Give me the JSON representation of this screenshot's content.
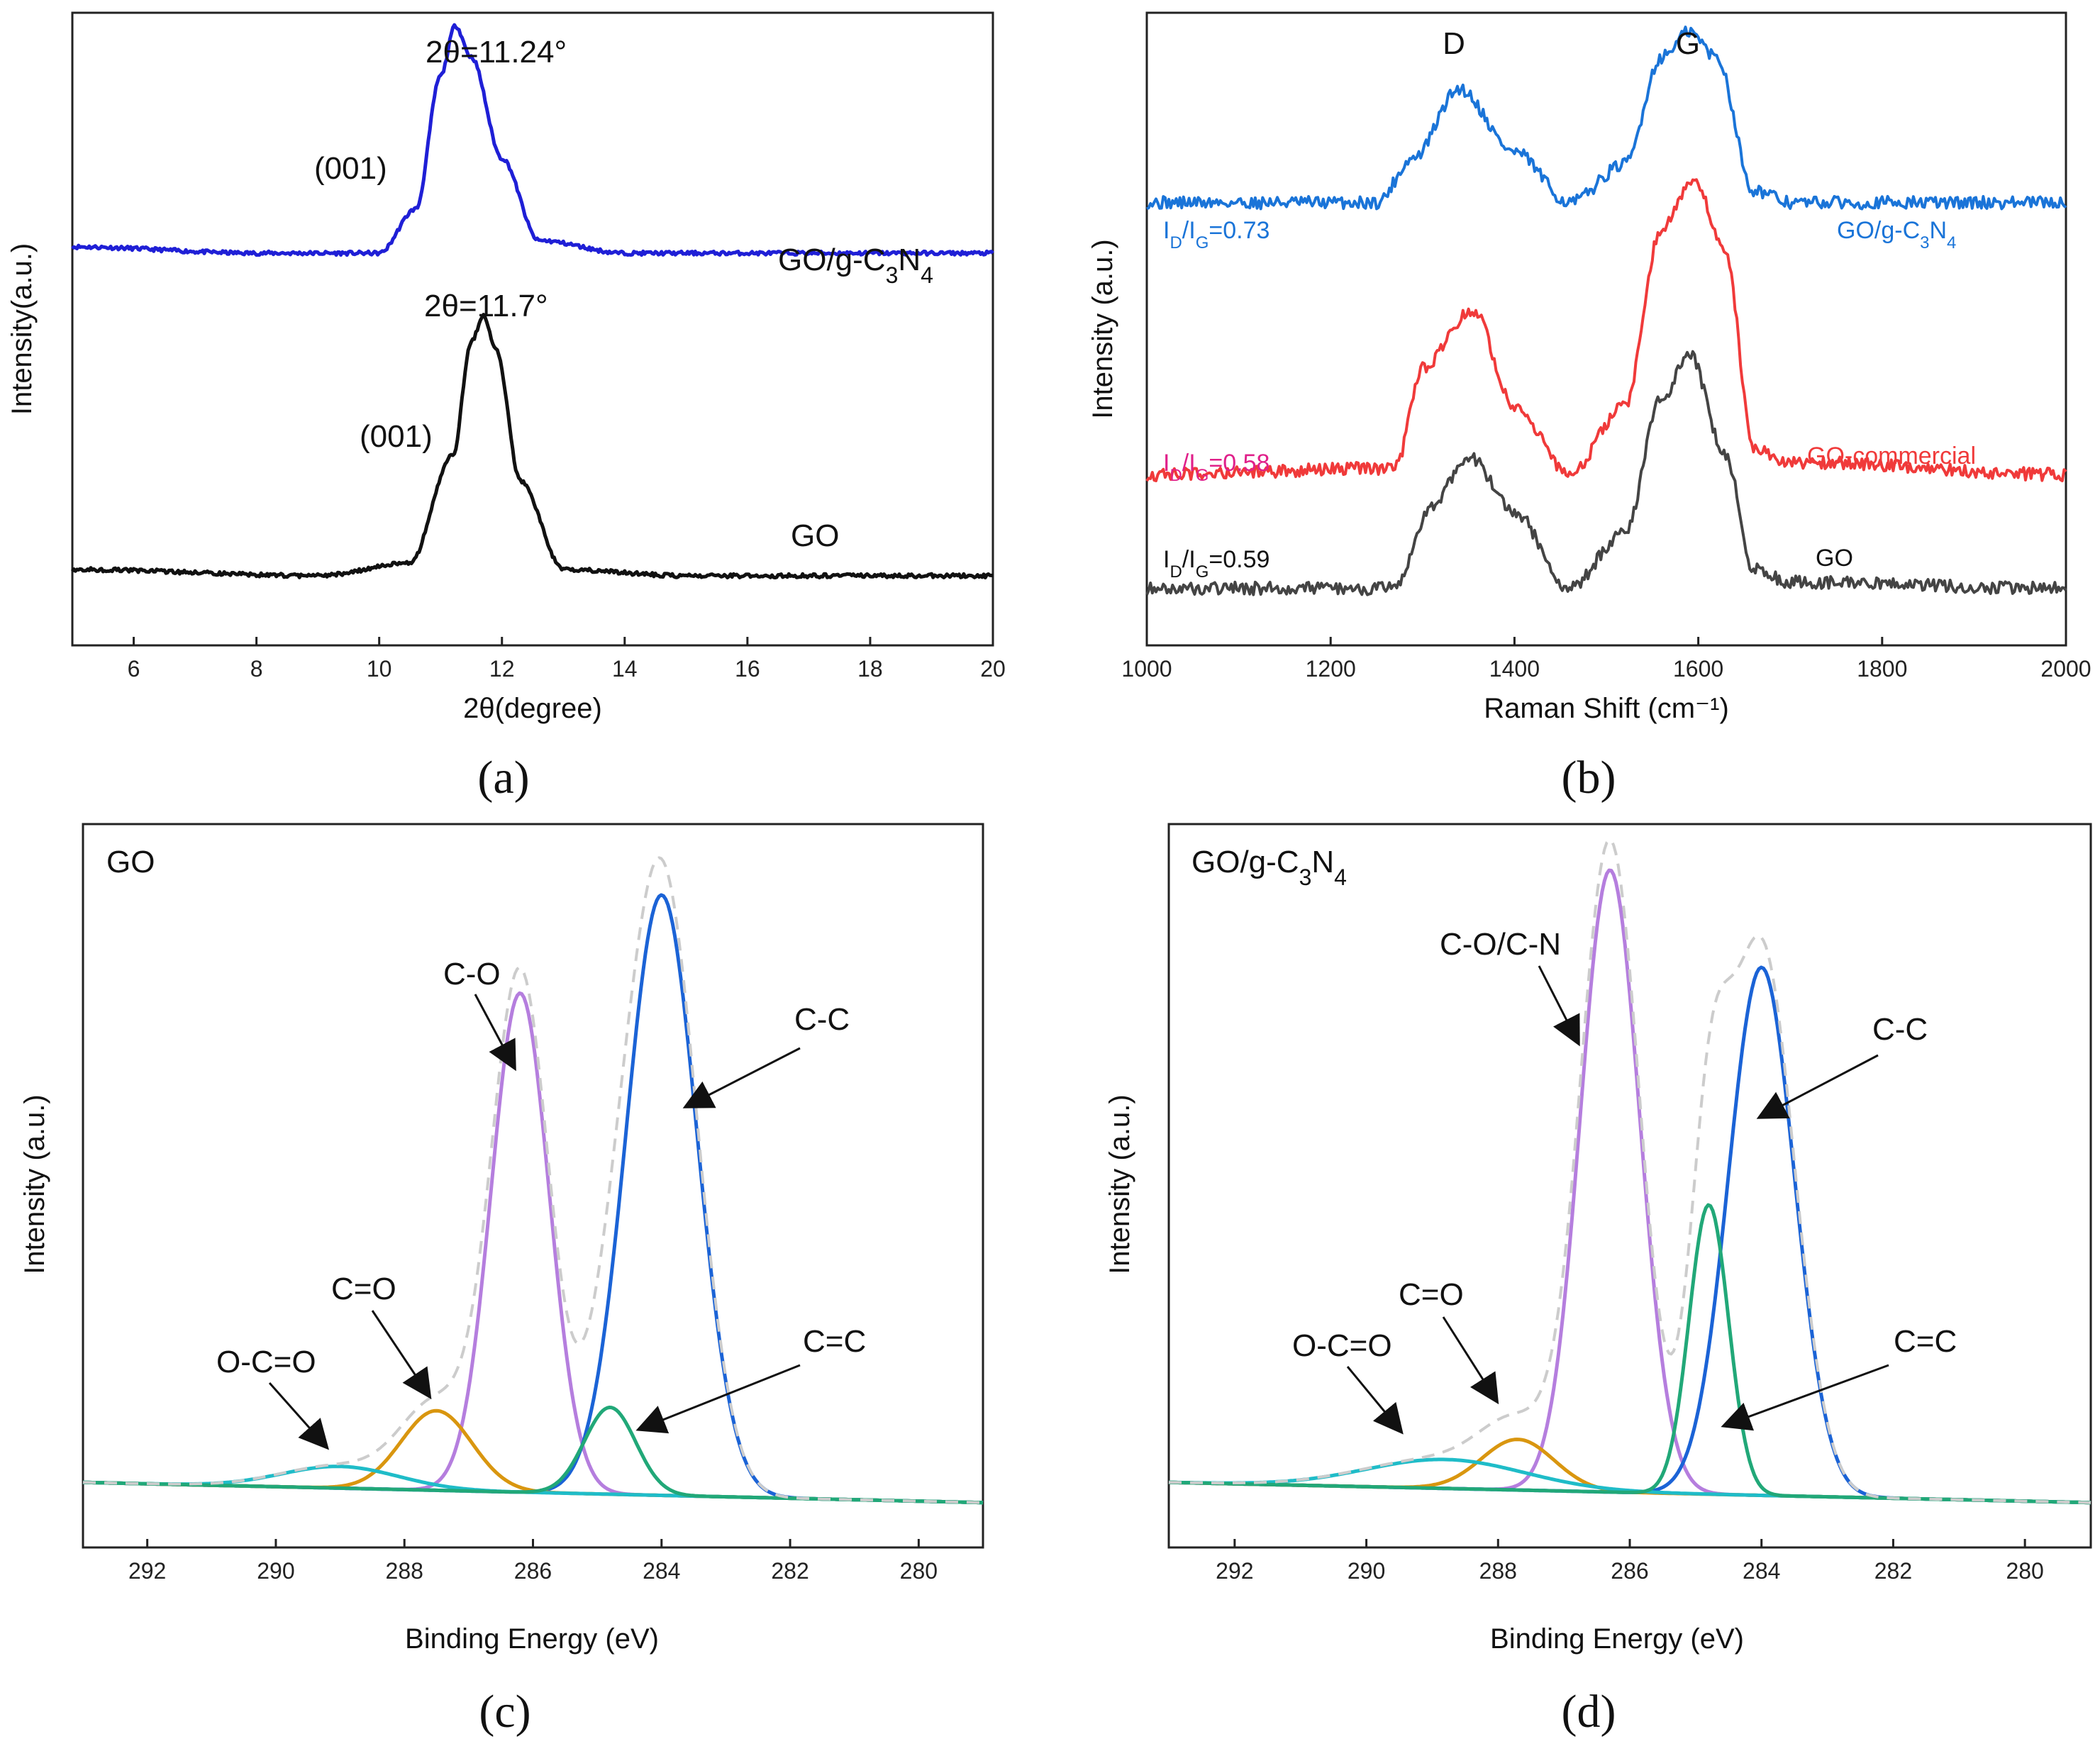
{
  "panels": {
    "a": {
      "label": "(a)",
      "xlabel": "2θ(degree)",
      "ylabel": "Intensity(a.u.)",
      "ann_peak_top": "2θ=11.24°",
      "ann_plane_top": "(001)",
      "ann_peak_bottom": "2θ=11.7°",
      "ann_plane_bottom": "(001)",
      "series_top_name": "GO/g-C3N4",
      "series_bottom_name": "GO"
    },
    "b": {
      "label": "(b)",
      "xlabel": "Raman Shift (cm⁻¹)",
      "ylabel": "Intensity (a.u.)",
      "band_d": "D",
      "band_g": "G",
      "ratio_top": "ID/IG=0.73",
      "ratio_mid": "ID/IG=0.58",
      "ratio_bottom": "ID/IG=0.59",
      "series_top_name": "GO/g-C3N4",
      "series_mid_name": "GO-commercial",
      "series_bottom_name": "GO"
    },
    "c": {
      "label": "(c)",
      "xlabel": "Binding Energy (eV)",
      "ylabel": "Intensity (a.u.)",
      "sample": "GO",
      "peaks": {
        "co": "C-O",
        "cc": "C-C",
        "c_dbl_o": "C=O",
        "occo": "O-C=O",
        "c_dbl_c": "C=C"
      }
    },
    "d": {
      "label": "(d)",
      "xlabel": "Binding Energy (eV)",
      "ylabel": "Intensity (a.u.)",
      "sample": "GO/g-C3N4",
      "peaks": {
        "con": "C-O/C-N",
        "cc": "C-C",
        "c_dbl_o": "C=O",
        "occo": "O-C=O",
        "c_dbl_c": "C=C"
      }
    }
  },
  "colors": {
    "xrd_top": "#1f1fd6",
    "xrd_bottom": "#111111",
    "raman_top": "#1a74d8",
    "raman_mid": "#f03a3a",
    "raman_bottom": "#444444",
    "ratio_mid_text": "#e0208a",
    "c_o": "#b57ede",
    "c_c": "#1b63d6",
    "c_dbl_o": "#d9960f",
    "o_c_o": "#1fbcc8",
    "c_dbl_c": "#21a878",
    "envelope": "#cccccc"
  },
  "chart_data": [
    {
      "type": "line",
      "panel": "a",
      "title": "",
      "xlabel": "2θ(degree)",
      "ylabel": "Intensity(a.u.)",
      "xlim": [
        5,
        20
      ],
      "xticks": [
        6,
        8,
        10,
        12,
        14,
        16,
        18,
        20
      ],
      "y_ticks_shown": false,
      "series": [
        {
          "name": "GO/g-C3N4",
          "x": [
            5,
            8,
            10,
            10.6,
            11.0,
            11.24,
            11.5,
            12.0,
            12.6,
            14,
            20
          ],
          "y": [
            0.63,
            0.62,
            0.62,
            0.69,
            0.9,
            0.98,
            0.93,
            0.77,
            0.64,
            0.62,
            0.62
          ]
        },
        {
          "name": "GO",
          "x": [
            5,
            9,
            10.5,
            11.2,
            11.5,
            11.7,
            11.9,
            12.3,
            13.0,
            15,
            20
          ],
          "y": [
            0.12,
            0.11,
            0.13,
            0.3,
            0.48,
            0.52,
            0.47,
            0.26,
            0.12,
            0.11,
            0.11
          ]
        }
      ]
    },
    {
      "type": "line",
      "panel": "b",
      "title": "",
      "xlabel": "Raman Shift (cm⁻¹)",
      "ylabel": "Intensity (a.u.)",
      "xlim": [
        1000,
        2000
      ],
      "xticks": [
        1000,
        1200,
        1400,
        1600,
        1800,
        2000
      ],
      "y_ticks_shown": false,
      "series": [
        {
          "name": "GO/g-C3N4",
          "x": [
            1000,
            1250,
            1290,
            1340,
            1400,
            1460,
            1520,
            1560,
            1590,
            1620,
            1660,
            1700,
            2000
          ],
          "y": [
            0.7,
            0.7,
            0.77,
            0.88,
            0.78,
            0.7,
            0.76,
            0.93,
            0.97,
            0.93,
            0.72,
            0.7,
            0.7
          ]
        },
        {
          "name": "GO-commercial",
          "x": [
            1000,
            1270,
            1300,
            1355,
            1400,
            1460,
            1520,
            1560,
            1595,
            1630,
            1660,
            1700,
            2000
          ],
          "y": [
            0.27,
            0.28,
            0.44,
            0.53,
            0.38,
            0.27,
            0.38,
            0.66,
            0.74,
            0.62,
            0.31,
            0.29,
            0.27
          ]
        },
        {
          "name": "GO",
          "x": [
            1000,
            1270,
            1310,
            1350,
            1400,
            1460,
            1520,
            1560,
            1590,
            1630,
            1660,
            1700,
            2000
          ],
          "y": [
            0.09,
            0.09,
            0.22,
            0.3,
            0.21,
            0.09,
            0.18,
            0.39,
            0.46,
            0.3,
            0.12,
            0.1,
            0.09
          ]
        }
      ]
    },
    {
      "type": "line",
      "panel": "c",
      "title": "",
      "xlabel": "Binding Energy (eV)",
      "ylabel": "Intensity (a.u.)",
      "xlim": [
        293,
        279
      ],
      "xticks": [
        292,
        290,
        288,
        286,
        284,
        282,
        280
      ],
      "y_ticks_shown": false,
      "series": [
        {
          "name": "C-O",
          "center": 286.2,
          "width": 0.45,
          "height": 0.69
        },
        {
          "name": "C-C",
          "center": 284.0,
          "width": 0.55,
          "height": 0.83
        },
        {
          "name": "C=O",
          "center": 287.5,
          "width": 0.55,
          "height": 0.11
        },
        {
          "name": "O-C=O",
          "center": 289.0,
          "width": 0.9,
          "height": 0.03
        },
        {
          "name": "C=C",
          "center": 284.8,
          "width": 0.4,
          "height": 0.12
        }
      ]
    },
    {
      "type": "line",
      "panel": "d",
      "title": "",
      "xlabel": "Binding Energy (eV)",
      "ylabel": "Intensity (a.u.)",
      "xlim": [
        293,
        279
      ],
      "xticks": [
        292,
        290,
        288,
        286,
        284,
        282,
        280
      ],
      "y_ticks_shown": false,
      "series": [
        {
          "name": "C-O/C-N",
          "center": 286.3,
          "width": 0.45,
          "height": 0.86
        },
        {
          "name": "C-C",
          "center": 284.0,
          "width": 0.5,
          "height": 0.73
        },
        {
          "name": "C=O",
          "center": 287.7,
          "width": 0.55,
          "height": 0.07
        },
        {
          "name": "O-C=O",
          "center": 288.8,
          "width": 1.2,
          "height": 0.04
        },
        {
          "name": "C=C",
          "center": 284.8,
          "width": 0.3,
          "height": 0.4
        }
      ]
    }
  ]
}
